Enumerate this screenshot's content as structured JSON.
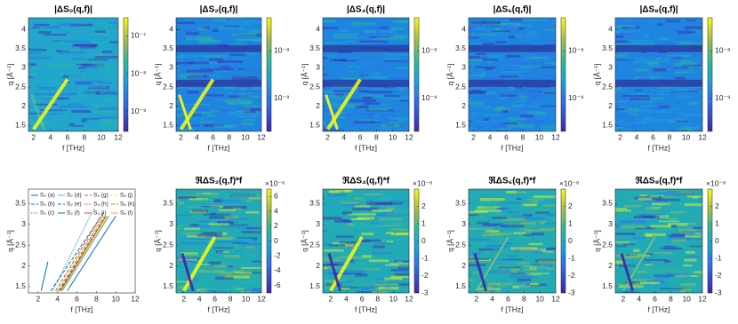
{
  "chart_data": [
    {
      "type": "heatmap",
      "title": "|ΔS₀(q,f)|",
      "xlabel": "f [THz]",
      "ylabel": "q [Å⁻¹]",
      "xlim": [
        1.4,
        12
      ],
      "xticks": [
        2,
        4,
        6,
        8,
        10,
        12
      ],
      "ylim": [
        1.35,
        4.3
      ],
      "yticks": [
        1.5,
        2,
        2.5,
        3,
        3.5,
        4
      ],
      "clog": true,
      "clim": [
        3e-10,
        3e-07
      ],
      "cticks": [
        {
          "value": 1e-07,
          "label": "10⁻⁷"
        },
        {
          "value": 1e-08,
          "label": "10⁻⁸"
        },
        {
          "value": 1e-09,
          "label": "10⁻⁹"
        }
      ]
    },
    {
      "type": "heatmap",
      "title": "|ΔS₂(q,f)|",
      "xlabel": "f [THz]",
      "ylabel": "q [Å⁻¹]",
      "xlim": [
        1.4,
        12
      ],
      "xticks": [
        2,
        4,
        6,
        8,
        10,
        12
      ],
      "ylim": [
        1.35,
        4.3
      ],
      "yticks": [
        1.5,
        2,
        2.5,
        3,
        3.5,
        4
      ],
      "clog": true,
      "clim": [
        2e-10,
        5e-08
      ],
      "cticks": [
        {
          "value": 1e-08,
          "label": "10⁻⁸"
        },
        {
          "value": 1e-09,
          "label": "10⁻⁹"
        }
      ]
    },
    {
      "type": "heatmap",
      "title": "|ΔS₄(q,f)|",
      "xlabel": "f [THz]",
      "ylabel": "q [Å⁻¹]",
      "xlim": [
        1.4,
        12
      ],
      "xticks": [
        2,
        4,
        6,
        8,
        10,
        12
      ],
      "ylim": [
        1.35,
        4.3
      ],
      "yticks": [
        1.5,
        2,
        2.5,
        3,
        3.5,
        4
      ],
      "clog": true,
      "clim": [
        2e-10,
        5e-08
      ],
      "cticks": [
        {
          "value": 1e-08,
          "label": "10⁻⁸"
        },
        {
          "value": 1e-09,
          "label": "10⁻⁹"
        }
      ]
    },
    {
      "type": "heatmap",
      "title": "|ΔS₆(q,f)|",
      "xlabel": "f [THz]",
      "ylabel": "q [Å⁻¹]",
      "xlim": [
        1.4,
        12
      ],
      "xticks": [
        2,
        4,
        6,
        8,
        10,
        12
      ],
      "ylim": [
        1.35,
        4.3
      ],
      "yticks": [
        1.5,
        2,
        2.5,
        3,
        3.5,
        4
      ],
      "clog": true,
      "clim": [
        2e-10,
        5e-08
      ],
      "cticks": [
        {
          "value": 1e-08,
          "label": "10⁻⁸"
        },
        {
          "value": 1e-09,
          "label": "10⁻⁹"
        }
      ]
    },
    {
      "type": "heatmap",
      "title": "|ΔS₈(q,f)|",
      "xlabel": "f [THz]",
      "ylabel": "q [Å⁻¹]",
      "xlim": [
        1.4,
        12
      ],
      "xticks": [
        2,
        4,
        6,
        8,
        10,
        12
      ],
      "ylim": [
        1.35,
        4.3
      ],
      "yticks": [
        1.5,
        2,
        2.5,
        3,
        3.5,
        4
      ],
      "clog": true,
      "clim": [
        2e-10,
        5e-08
      ],
      "cticks": [
        {
          "value": 1e-08,
          "label": "10⁻⁸"
        },
        {
          "value": 1e-09,
          "label": "10⁻⁹"
        }
      ]
    },
    {
      "type": "line",
      "xlabel": "f [THz]",
      "ylabel": "q [Å⁻¹]",
      "xlim": [
        1,
        12
      ],
      "xticks": [
        2,
        4,
        6,
        8,
        10,
        12
      ],
      "ylim": [
        1.35,
        3.85
      ],
      "yticks": [
        1.5,
        2,
        2.5,
        3,
        3.5
      ],
      "series": [
        {
          "name": "S₀ (a)",
          "color": "#0072bd",
          "style": "solid",
          "x": [
            2.3,
            3.0
          ],
          "values": [
            1.4,
            2.1
          ]
        },
        {
          "name": "S₀ (b)",
          "color": "#0072bd",
          "style": "dashed",
          "x": [
            3.3,
            8.8
          ],
          "values": [
            1.4,
            3.3
          ]
        },
        {
          "name": "S₀ (c)",
          "color": "#0072bd",
          "style": "dotted",
          "x": [
            3.5,
            7.8
          ],
          "values": [
            1.4,
            3.4
          ]
        },
        {
          "name": "S₂ (d)",
          "color": "#4dbeee",
          "style": "solid",
          "x": [
            4.5,
            9.3
          ],
          "values": [
            1.4,
            3.2
          ]
        },
        {
          "name": "S₂ (e)",
          "color": "#2a6fb8",
          "style": "dashed",
          "x": [
            4.2,
            9.0
          ],
          "values": [
            1.4,
            3.2
          ]
        },
        {
          "name": "S₂ (f)",
          "color": "#0072bd",
          "style": "solid",
          "x": [
            5.0,
            10.0
          ],
          "values": [
            1.4,
            3.2
          ]
        },
        {
          "name": "S₄ (g)",
          "color": "#d95319",
          "style": "dashed",
          "x": [
            3.8,
            8.5
          ],
          "values": [
            1.4,
            3.2
          ]
        },
        {
          "name": "S₄ (h)",
          "color": "#a2142f",
          "style": "dotted",
          "x": [
            4.0,
            8.7
          ],
          "values": [
            1.4,
            3.2
          ]
        },
        {
          "name": "S₄ (i)",
          "color": "#d95319",
          "style": "solid",
          "x": [
            4.3,
            9.0
          ],
          "values": [
            1.4,
            3.2
          ]
        },
        {
          "name": "S₆ (j)",
          "color": "#edb120",
          "style": "dotted",
          "x": [
            4.0,
            8.8
          ],
          "values": [
            1.4,
            3.2
          ]
        },
        {
          "name": "S₆ (k)",
          "color": "#77ac30",
          "style": "dashed",
          "x": [
            4.1,
            8.9
          ],
          "values": [
            1.4,
            3.2
          ]
        },
        {
          "name": "S₆ (l)",
          "color": "#edb120",
          "style": "solid",
          "x": [
            4.4,
            9.2
          ],
          "values": [
            1.4,
            3.2
          ]
        }
      ]
    },
    {
      "type": "heatmap",
      "title": "ℜΔS₂(q,f)*f",
      "xlabel": "f [THz]",
      "ylabel": "q [Å⁻¹]",
      "xlim": [
        1,
        12
      ],
      "xticks": [
        2,
        4,
        6,
        8,
        10,
        12
      ],
      "ylim": [
        1.35,
        3.85
      ],
      "yticks": [
        1.5,
        2,
        2.5,
        3,
        3.5
      ],
      "clog": false,
      "cmultiplier": "×10⁻⁸",
      "clim": [
        -7,
        7
      ],
      "cticks": [
        -6,
        -4,
        -2,
        0,
        2,
        4,
        6
      ]
    },
    {
      "type": "heatmap",
      "title": "ℜΔS₄(q,f)*f",
      "xlabel": "f [THz]",
      "ylabel": "q [Å⁻¹]",
      "xlim": [
        1,
        12
      ],
      "xticks": [
        2,
        4,
        6,
        8,
        10,
        12
      ],
      "ylim": [
        1.35,
        3.85
      ],
      "yticks": [
        1.5,
        2,
        2.5,
        3,
        3.5
      ],
      "clog": false,
      "cmultiplier": "×10⁻⁸",
      "clim": [
        -3,
        3
      ],
      "cticks": [
        -3,
        -2,
        -1,
        0,
        1,
        2
      ]
    },
    {
      "type": "heatmap",
      "title": "ℜΔS₆(q,f)*f",
      "xlabel": "f [THz]",
      "ylabel": "q [Å⁻¹]",
      "xlim": [
        1,
        12
      ],
      "xticks": [
        2,
        4,
        6,
        8,
        10,
        12
      ],
      "ylim": [
        1.35,
        3.85
      ],
      "yticks": [
        1.5,
        2,
        2.5,
        3,
        3.5
      ],
      "clog": false,
      "cmultiplier": "×10⁻⁸",
      "clim": [
        -3,
        3
      ],
      "cticks": [
        -3,
        -2,
        -1,
        0,
        1,
        2
      ]
    },
    {
      "type": "heatmap",
      "title": "ℜΔS₈(q,f)*f",
      "xlabel": "f [THz]",
      "ylabel": "q [Å⁻¹]",
      "xlim": [
        1,
        12
      ],
      "xticks": [
        2,
        4,
        6,
        8,
        10,
        12
      ],
      "ylim": [
        1.35,
        3.85
      ],
      "yticks": [
        1.5,
        2,
        2.5,
        3,
        3.5
      ],
      "clog": false,
      "cmultiplier": "×10⁻⁸",
      "clim": [
        -3,
        3
      ],
      "cticks": [
        -3,
        -2,
        -1,
        0,
        1,
        2
      ]
    }
  ]
}
